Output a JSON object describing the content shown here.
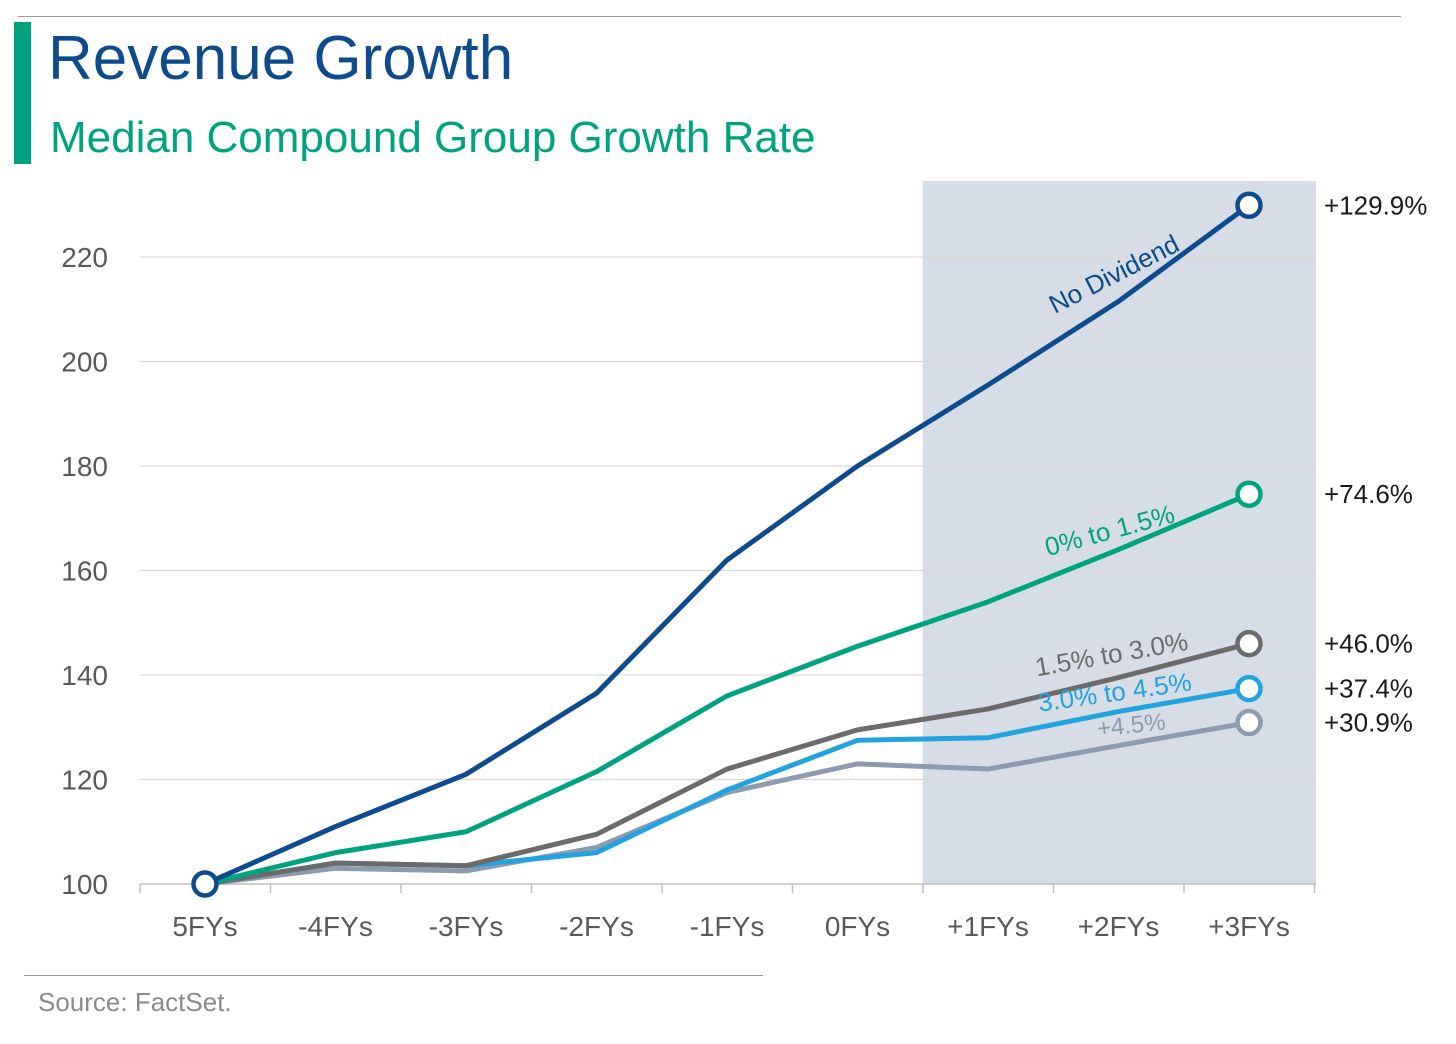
{
  "header": {
    "title": "Revenue Growth",
    "subtitle": "Median Compound Group Growth Rate"
  },
  "footer": {
    "source": "Source: FactSet."
  },
  "colors": {
    "title": "#0d4b8c",
    "accent": "#00a37f",
    "forecast_shading": "#d6dde7",
    "grid": "#d9d9d9",
    "axis_text": "#595959"
  },
  "chart_data": {
    "type": "line",
    "categories": [
      "5FYs",
      "-4FYs",
      "-3FYs",
      "-2FYs",
      "-1FYs",
      "0FYs",
      "+1FYs",
      "+2FYs",
      "+3FYs"
    ],
    "ylim": [
      100,
      230
    ],
    "yticks": [
      100,
      120,
      140,
      160,
      180,
      200,
      220
    ],
    "grid": "horizontal",
    "shaded_region": {
      "from": "+1FYs",
      "to": "+3FYs",
      "description": "forecast"
    },
    "series": [
      {
        "name": "No Dividend",
        "color": "#0d4b8c",
        "end_label": "+129.9%",
        "values": [
          100,
          111,
          121,
          136.5,
          162,
          180,
          195.5,
          211.5,
          229.9
        ]
      },
      {
        "name": "0% to 1.5%",
        "color": "#00a37f",
        "end_label": "+74.6%",
        "values": [
          100,
          106,
          110,
          121.5,
          136,
          145.5,
          154,
          164,
          174.6
        ]
      },
      {
        "name": "1.5% to 3.0%",
        "color": "#6b6b6b",
        "end_label": "+46.0%",
        "values": [
          100,
          104,
          103.5,
          109.5,
          122,
          129.5,
          133.5,
          139.5,
          146.0
        ]
      },
      {
        "name": "3.0% to 4.5%",
        "color": "#22a3dd",
        "end_label": "+37.4%",
        "values": [
          100,
          104,
          103.5,
          106,
          118,
          127.5,
          128,
          133,
          137.4
        ]
      },
      {
        "name": "+4.5%",
        "color": "#8c9bb0",
        "end_label": "+30.9%",
        "values": [
          100,
          103,
          102.5,
          107,
          117.5,
          123,
          122,
          126.5,
          130.9
        ]
      }
    ]
  }
}
